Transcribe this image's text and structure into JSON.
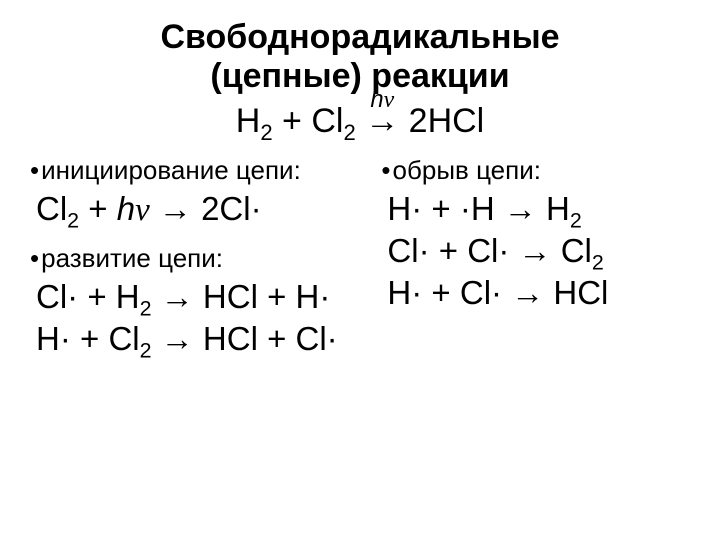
{
  "title_line1": "Свободнорадикальные",
  "title_line2": "(цепные) реакции",
  "main_equation": {
    "left": "H",
    "plus": " + Cl",
    "over": "hν",
    "arrow": " → ",
    "right": "2HCl"
  },
  "sections": {
    "init_label": "инициирование цепи:",
    "init_eq": "Cl₂ + hν → 2Cl·",
    "dev_label": "развитие цепи:",
    "dev_eq1": "Cl· + H₂ → HCl + H·",
    "dev_eq2": "H· + Cl₂ → HCl + Cl·",
    "term_label": "обрыв цепи:",
    "term_eq1": "H· + ·H → H₂",
    "term_eq2": "Cl· + Cl· → Cl₂",
    "term_eq3": "H· + Cl· → HCl"
  },
  "style": {
    "background": "#ffffff",
    "text_color": "#000000",
    "title_fontsize": 34,
    "label_fontsize": 26,
    "eq_fontsize": 33,
    "font_family": "Arial"
  }
}
